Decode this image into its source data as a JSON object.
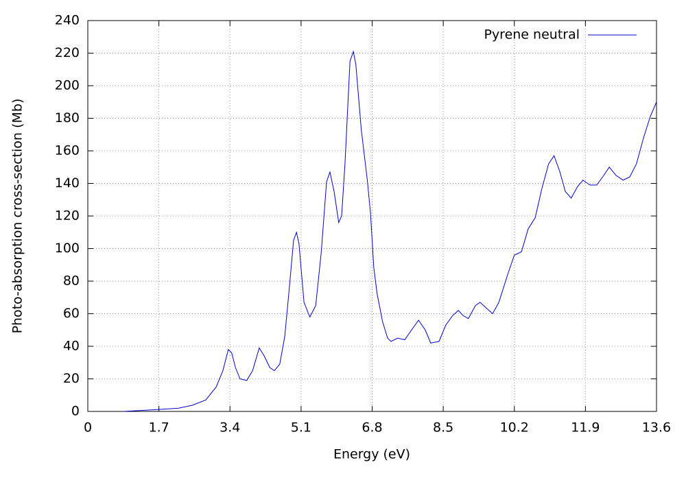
{
  "chart_data": {
    "type": "line",
    "xlabel": "Energy (eV)",
    "ylabel": "Photo-absorption cross-section (Mb)",
    "x": [
      0.85,
      1.7,
      2.17,
      2.5,
      2.82,
      3.07,
      3.23,
      3.36,
      3.44,
      3.53,
      3.64,
      3.8,
      3.94,
      4.1,
      4.22,
      4.35,
      4.46,
      4.59,
      4.71,
      4.82,
      4.92,
      4.99,
      5.05,
      5.17,
      5.31,
      5.45,
      5.58,
      5.71,
      5.79,
      5.89,
      6.0,
      6.07,
      6.15,
      6.27,
      6.35,
      6.41,
      6.54,
      6.68,
      6.76,
      6.84,
      6.92,
      7.05,
      7.17,
      7.25,
      7.41,
      7.58,
      7.74,
      7.91,
      8.07,
      8.2,
      8.4,
      8.56,
      8.73,
      8.86,
      8.97,
      9.1,
      9.27,
      9.38,
      9.55,
      9.68,
      9.83,
      10.04,
      10.2,
      10.37,
      10.53,
      10.7,
      10.86,
      11.02,
      11.15,
      11.29,
      11.42,
      11.56,
      11.71,
      11.84,
      12.01,
      12.17,
      12.34,
      12.47,
      12.63,
      12.8,
      12.96,
      13.12,
      13.29,
      13.45,
      13.6
    ],
    "series": [
      {
        "name": "Pyrene neutral",
        "color": "#0000cc",
        "values": [
          0,
          1.2,
          2,
          3.8,
          7,
          15,
          25,
          38,
          36,
          27,
          20,
          19,
          25,
          39,
          34,
          27,
          25,
          29,
          46,
          76,
          105,
          110,
          103,
          67,
          58,
          65,
          97,
          141,
          147,
          135,
          116,
          120,
          152,
          215,
          221,
          213,
          173,
          143,
          122,
          88,
          72,
          55,
          45,
          43,
          45,
          44,
          50,
          56,
          50,
          42,
          43,
          53,
          59,
          62,
          59,
          57,
          65,
          67,
          63,
          60,
          67,
          84,
          96,
          98,
          112,
          119,
          137,
          152,
          157,
          147,
          135,
          131,
          138,
          142,
          139,
          139,
          145,
          150,
          145,
          142,
          144,
          152,
          168,
          181,
          190
        ]
      }
    ],
    "xlim": [
      0,
      13.6
    ],
    "xticks": [
      0,
      1.7,
      3.4,
      5.1,
      6.8,
      8.5,
      10.2,
      11.9,
      13.6
    ],
    "ylim": [
      0,
      240
    ],
    "yticks": [
      0,
      20,
      40,
      60,
      80,
      100,
      120,
      140,
      160,
      180,
      200,
      220,
      240
    ],
    "grid": true,
    "legend": "upper right"
  }
}
